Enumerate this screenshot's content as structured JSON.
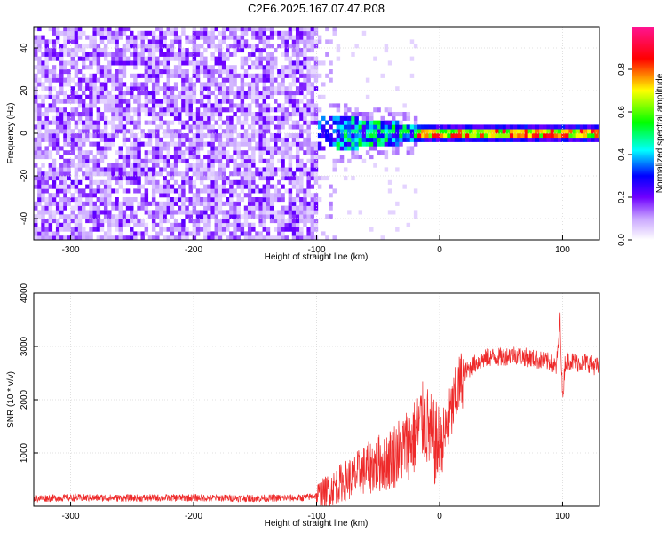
{
  "chart_data": [
    {
      "type": "heatmap",
      "title": "C2E6.2025.167.07.47.R08",
      "xlabel": "Height of straight line (km)",
      "ylabel": "Frequency (Hz)",
      "xlim": [
        -330,
        130
      ],
      "ylim": [
        -50,
        50
      ],
      "xticks": [
        -300,
        -200,
        -100,
        0,
        100
      ],
      "yticks": [
        -40,
        -20,
        0,
        20,
        40
      ],
      "colorbar": {
        "label": "Normalized spectral amplitude",
        "range": [
          0,
          1
        ],
        "ticks": [
          0.0,
          0.2,
          0.4,
          0.6,
          0.8
        ],
        "colormap": [
          "#ffffff",
          "#8b00ff",
          "#0000ff",
          "#00ffff",
          "#00ff00",
          "#ffff00",
          "#ff0000",
          "#ff00aa"
        ]
      },
      "regions": [
        {
          "x_range": [
            -330,
            -100
          ],
          "description_values": {
            "amplitude_typical": 0.05,
            "freq_span_hz": [
              -50,
              50
            ]
          }
        },
        {
          "x_range": [
            -100,
            -20
          ],
          "description_values": {
            "amplitude_typical": 0.3,
            "freq_span_hz": [
              -8,
              8
            ]
          }
        },
        {
          "x_range": [
            -20,
            130
          ],
          "description_values": {
            "amplitude_typical": 0.9,
            "freq_span_hz": [
              -2,
              2
            ]
          }
        }
      ],
      "grid": true
    },
    {
      "type": "line",
      "xlabel": "Height of straight line (km)",
      "ylabel": "SNR (10 * v/v)",
      "xlim": [
        -330,
        130
      ],
      "ylim": [
        0,
        4000
      ],
      "xticks": [
        -300,
        -200,
        -100,
        0,
        100
      ],
      "yticks": [
        1000,
        2000,
        3000,
        4000
      ],
      "series": [
        {
          "color": "#ee2a2a",
          "x": [
            -330,
            -300,
            -250,
            -200,
            -150,
            -110,
            -100,
            -90,
            -80,
            -70,
            -60,
            -50,
            -40,
            -30,
            -20,
            -15,
            -10,
            -5,
            0,
            5,
            10,
            15,
            20,
            30,
            40,
            50,
            60,
            70,
            80,
            90,
            95,
            98,
            100,
            102,
            105,
            110,
            120,
            130
          ],
          "values": [
            150,
            160,
            155,
            160,
            150,
            160,
            200,
            300,
            450,
            550,
            700,
            800,
            900,
            1100,
            1300,
            1600,
            1500,
            1200,
            1100,
            1400,
            1800,
            2200,
            2500,
            2700,
            2800,
            2800,
            2850,
            2800,
            2750,
            2700,
            2600,
            3500,
            2000,
            2700,
            2750,
            2700,
            2700,
            2600
          ]
        }
      ],
      "grid": true
    }
  ]
}
